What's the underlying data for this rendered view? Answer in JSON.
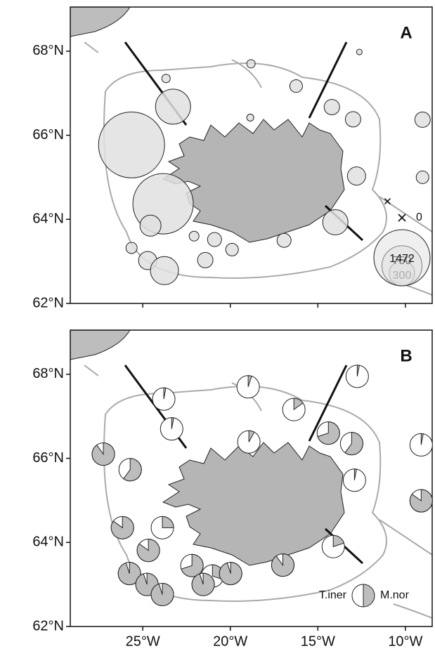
{
  "map": {
    "xlim": [
      -29.14,
      -8.47
    ],
    "xticks": [
      {
        "value": -25,
        "label": "25°W"
      },
      {
        "value": -20,
        "label": "20°W"
      },
      {
        "value": -15,
        "label": "15°W"
      },
      {
        "value": -10,
        "label": "10°W"
      }
    ],
    "ylim": [
      62,
      69.05
    ],
    "yticks": [
      {
        "value": 62,
        "label": "62°N"
      },
      {
        "value": 64,
        "label": "64°N"
      },
      {
        "value": 66,
        "label": "66°N"
      },
      {
        "value": 68,
        "label": "68°N"
      }
    ],
    "panels": [
      {
        "label": "A",
        "type": "bubble",
        "color": "#e0e0e0",
        "lon": [
          -23.27,
          -25.64,
          -23.84,
          -24.56,
          -23.67,
          -18.82,
          -18.86,
          -16.24,
          -14.2,
          -12.99,
          -12.63,
          -9.02,
          -12.79,
          -9.02,
          -14.0,
          -11.02,
          -25.64,
          -24.72,
          -23.76,
          -22.07,
          -20.9,
          -19.9,
          -21.43,
          -16.93
        ],
        "lat": [
          66.68,
          65.77,
          64.37,
          63.85,
          67.35,
          67.7,
          66.42,
          67.17,
          66.67,
          66.38,
          67.98,
          66.37,
          65.03,
          65.0,
          63.93,
          64.43,
          63.32,
          63.02,
          62.78,
          63.6,
          63.52,
          63.28,
          63.03,
          63.5
        ],
        "values": [
          572,
          2030,
          1700,
          207,
          33,
          33,
          23,
          75,
          111,
          111,
          15,
          111,
          155,
          75,
          298,
          0,
          59,
          155,
          368,
          45,
          92,
          75,
          111,
          92
        ],
        "size_legend": [
          0,
          300,
          750,
          1472
        ]
      },
      {
        "label": "B",
        "type": "pie",
        "colors": [
          "#ffffff",
          "#bdbdbd"
        ],
        "lon": [
          -23.8,
          -23.35,
          -27.25,
          -25.72,
          -18.98,
          -18.94,
          -16.37,
          -12.75,
          -14.4,
          -13.07,
          -9.1,
          -12.91,
          -9.1,
          -26.16,
          -23.88,
          -24.68,
          -22.19,
          -21.02,
          -25.76,
          -24.76,
          -23.88,
          -21.55,
          -19.98,
          -17.0,
          -14.12
        ],
        "lat": [
          67.41,
          66.7,
          66.1,
          65.73,
          67.7,
          66.39,
          67.16,
          67.95,
          66.6,
          66.35,
          66.32,
          65.48,
          64.99,
          64.35,
          64.35,
          63.81,
          63.45,
          63.2,
          63.26,
          63.0,
          62.76,
          63.0,
          63.26,
          63.46,
          63.9
        ],
        "values": [
          3,
          3,
          90,
          60,
          5,
          8,
          15,
          3,
          70,
          60,
          3,
          3,
          85,
          85,
          25,
          85,
          70,
          30,
          95,
          95,
          95,
          95,
          95,
          90,
          20
        ],
        "legend": [
          "T.iner",
          "M.nor"
        ]
      }
    ]
  }
}
